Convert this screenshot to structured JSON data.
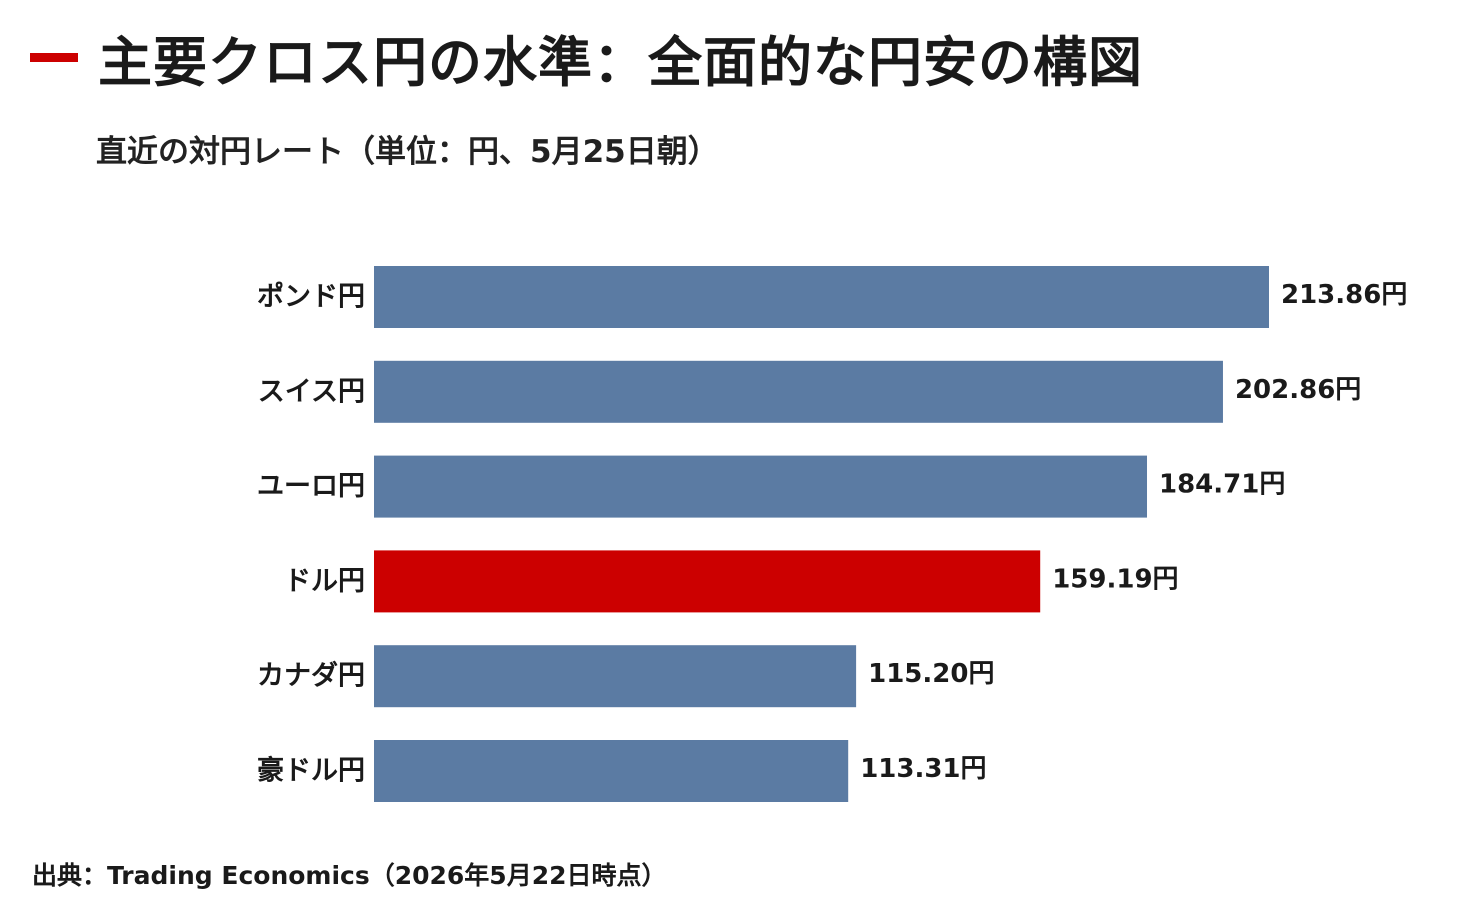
{
  "title": "主要クロス円の水準：全面的な円安の構図",
  "subtitle": "直近の対円レート（単位：円、5月25日朝）",
  "source": "出典：Trading Economics（2026年5月22日時点）",
  "colors": {
    "bar_default": "#5b7ba3",
    "bar_highlight": "#cc0000",
    "title_accent": "#cc0000"
  },
  "chart_data": {
    "type": "bar",
    "orientation": "horizontal",
    "title": "主要クロス円の水準：全面的な円安の構図",
    "subtitle": "直近の対円レート（単位：円、5月25日朝）",
    "categories": [
      "ポンド円",
      "スイス円",
      "ユーロ円",
      "ドル円",
      "カナダ円",
      "豪ドル円"
    ],
    "values": [
      213.86,
      202.86,
      184.71,
      159.19,
      115.2,
      113.31
    ],
    "value_labels": [
      "213.86円",
      "202.86円",
      "184.71円",
      "159.19円",
      "115.20円",
      "113.31円"
    ],
    "highlight": "ドル円",
    "xlim": [
      0,
      213.86
    ],
    "grid": false,
    "legend": "none"
  }
}
